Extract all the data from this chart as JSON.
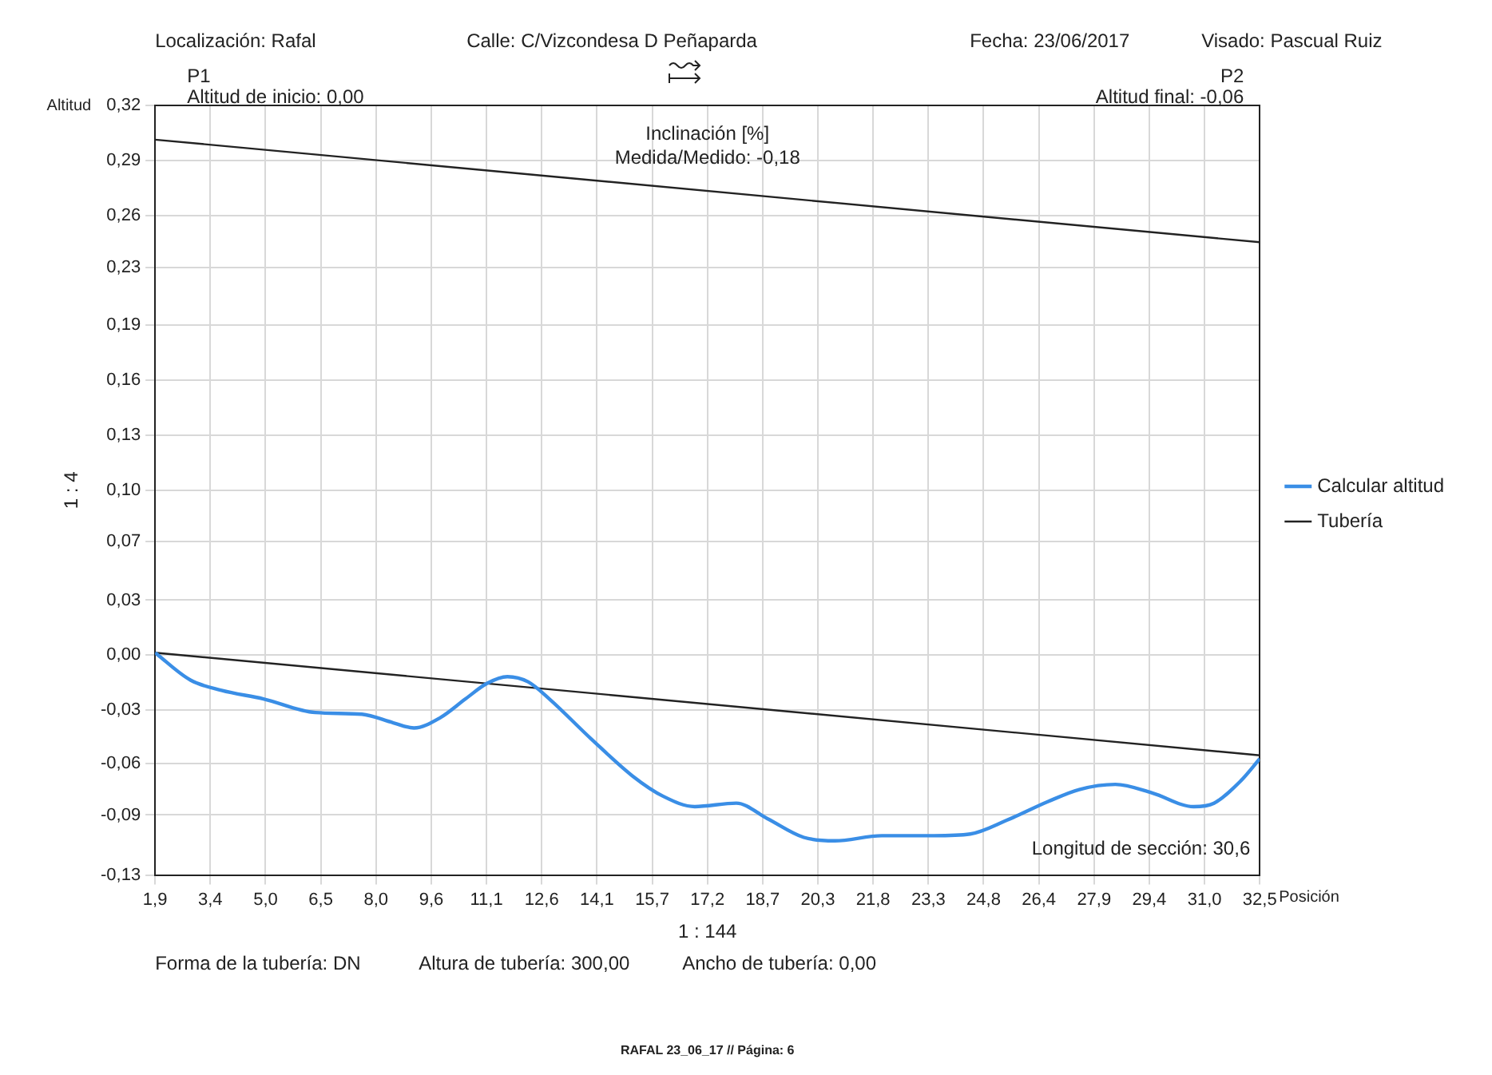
{
  "chart_data": {
    "type": "line",
    "title": "Inclinación [%]",
    "subtitle": "Medida/Medido: -0,18",
    "xlabel": "Posición",
    "ylabel": "Altitud",
    "annotations": [
      "Localización: Rafal",
      "Calle: C/Vizcondesa D Peñaparda",
      "Fecha: 23/06/2017",
      "Visado: Pascual Ruiz",
      "P1",
      "Altitud de inicio: 0,00",
      "P2",
      "Altitud final: -0,06",
      "Longitud de sección: 30,6",
      "1 : 144",
      "1 : 4",
      "Forma de la tubería: DN",
      "Altura de tubería: 300,00",
      "Ancho de tubería: 0,00",
      "RAFAL 23_06_17 // Página: 6"
    ],
    "series": [
      {
        "name": "Calcular altitud",
        "color": "#3a8ee6",
        "x": [
          1.9,
          2.88,
          3.74,
          4.9,
          6.34,
          7.63,
          8.5,
          9.07,
          9.8,
          10.5,
          11.09,
          11.66,
          12.23,
          12.82,
          13.96,
          15.12,
          15.98,
          16.85,
          18.0,
          18.86,
          19.87,
          20.73,
          22.03,
          23.47,
          24.48,
          25.49,
          26.64,
          27.5,
          28.5,
          29.52,
          30.67,
          31.23,
          31.97,
          32.5
        ],
        "values": [
          0.0,
          -0.016,
          -0.022,
          -0.027,
          -0.035,
          -0.036,
          -0.041,
          -0.044,
          -0.038,
          -0.027,
          -0.018,
          -0.014,
          -0.017,
          -0.027,
          -0.05,
          -0.072,
          -0.084,
          -0.09,
          -0.088,
          -0.097,
          -0.108,
          -0.11,
          -0.107,
          -0.107,
          -0.106,
          -0.098,
          -0.087,
          -0.08,
          -0.077,
          -0.082,
          -0.09,
          -0.088,
          -0.075,
          -0.062
        ]
      },
      {
        "name": "Tubería",
        "color": "#222222",
        "x": [
          1.9,
          32.5
        ],
        "values": [
          0.3,
          0.24
        ]
      },
      {
        "color": "#222222",
        "x": [
          1.9,
          32.5
        ],
        "values": [
          0.0,
          -0.06
        ]
      }
    ],
    "xlim": [
      1.9,
      32.5
    ],
    "xticks": [
      {
        "value": 1.9,
        "label": "1,9"
      },
      {
        "value": 3.43,
        "label": "3,4"
      },
      {
        "value": 4.96,
        "label": "5,0"
      },
      {
        "value": 6.49,
        "label": "6,5"
      },
      {
        "value": 8.02,
        "label": "8,0"
      },
      {
        "value": 9.55,
        "label": "9,6"
      },
      {
        "value": 11.08,
        "label": "11,1"
      },
      {
        "value": 12.61,
        "label": "12,6"
      },
      {
        "value": 14.14,
        "label": "14,1"
      },
      {
        "value": 15.67,
        "label": "15,7"
      },
      {
        "value": 17.2,
        "label": "17,2"
      },
      {
        "value": 18.73,
        "label": "18,7"
      },
      {
        "value": 20.26,
        "label": "20,3"
      },
      {
        "value": 21.79,
        "label": "21,8"
      },
      {
        "value": 23.32,
        "label": "23,3"
      },
      {
        "value": 24.85,
        "label": "24,8"
      },
      {
        "value": 26.38,
        "label": "26,4"
      },
      {
        "value": 27.91,
        "label": "27,9"
      },
      {
        "value": 29.44,
        "label": "29,4"
      },
      {
        "value": 30.97,
        "label": "31,0"
      },
      {
        "value": 32.5,
        "label": "32,5"
      }
    ],
    "ylim": [
      -0.13,
      0.32
    ],
    "yticks": [
      {
        "value": -0.13,
        "label": "-0,13"
      },
      {
        "value": -0.0949,
        "label": "-0,09"
      },
      {
        "value": -0.0649,
        "label": "-0,06"
      },
      {
        "value": -0.0336,
        "label": "-0,03"
      },
      {
        "value": -0.0014,
        "label": "0,00"
      },
      {
        "value": 0.0307,
        "label": "0,03"
      },
      {
        "value": 0.0651,
        "label": "0,07"
      },
      {
        "value": 0.095,
        "label": "0,10"
      },
      {
        "value": 0.1271,
        "label": "0,13"
      },
      {
        "value": 0.1593,
        "label": "0,16"
      },
      {
        "value": 0.1914,
        "label": "0,19"
      },
      {
        "value": 0.2251,
        "label": "0,23"
      },
      {
        "value": 0.2557,
        "label": "0,26"
      },
      {
        "value": 0.2879,
        "label": "0,29"
      },
      {
        "value": 0.32,
        "label": "0,32"
      }
    ],
    "grid": true,
    "legend": "right",
    "marker": "none",
    "line_style": "solid"
  }
}
